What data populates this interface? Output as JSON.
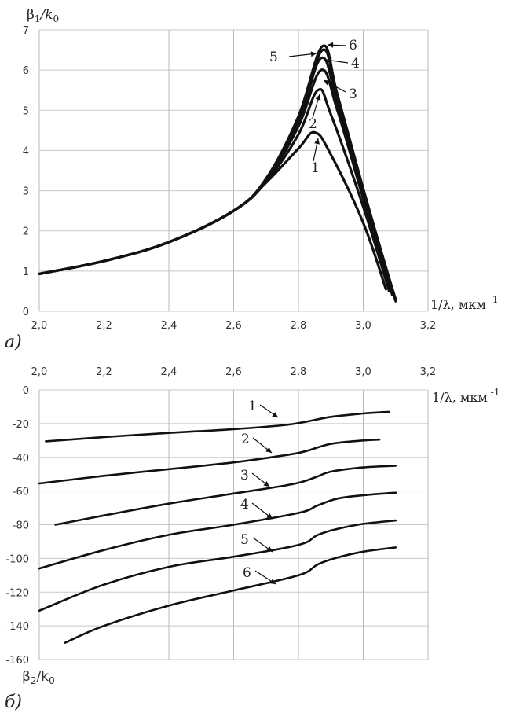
{
  "chart_data": [
    {
      "type": "line",
      "panel_label": "а)",
      "ylabel_main": "β",
      "ylabel_sub": "1",
      "ylabel_rest": "/k",
      "ylabel_sub2": "0",
      "xlabel": "1/λ, мкм",
      "xlabel_exp": "-1",
      "xlim": [
        2.0,
        3.2
      ],
      "ylim": [
        0,
        7
      ],
      "xticks": [
        2.0,
        2.2,
        2.4,
        2.6,
        2.8,
        3.0,
        3.2
      ],
      "xtick_labels": [
        "2,0",
        "2,2",
        "2,4",
        "2,6",
        "2,8",
        "3,0",
        "3,2"
      ],
      "yticks": [
        0,
        1,
        2,
        3,
        4,
        5,
        6,
        7
      ],
      "ytick_labels": [
        "0",
        "1",
        "2",
        "3",
        "4",
        "5",
        "6",
        "7"
      ],
      "series": [
        {
          "name": "1",
          "x": [
            2.0,
            2.2,
            2.4,
            2.6,
            2.7,
            2.8,
            2.85,
            2.9,
            3.0,
            3.07
          ],
          "y": [
            0.93,
            1.25,
            1.72,
            2.5,
            3.2,
            4.05,
            4.45,
            3.9,
            2.2,
            0.55
          ]
        },
        {
          "name": "2",
          "x": [
            2.0,
            2.2,
            2.4,
            2.6,
            2.7,
            2.8,
            2.86,
            2.9,
            3.0,
            3.08
          ],
          "y": [
            0.93,
            1.25,
            1.72,
            2.5,
            3.22,
            4.4,
            5.5,
            4.9,
            2.6,
            0.5
          ]
        },
        {
          "name": "3",
          "x": [
            2.0,
            2.2,
            2.4,
            2.6,
            2.7,
            2.8,
            2.87,
            2.92,
            3.0,
            3.09
          ],
          "y": [
            0.93,
            1.25,
            1.72,
            2.5,
            3.25,
            4.6,
            6.0,
            5.0,
            2.8,
            0.4
          ]
        },
        {
          "name": "4",
          "x": [
            2.0,
            2.2,
            2.4,
            2.6,
            2.7,
            2.8,
            2.87,
            2.92,
            3.0,
            3.1
          ],
          "y": [
            0.93,
            1.25,
            1.72,
            2.5,
            3.27,
            4.7,
            6.3,
            5.2,
            2.9,
            0.3
          ]
        },
        {
          "name": "5",
          "x": [
            2.0,
            2.2,
            2.4,
            2.6,
            2.7,
            2.8,
            2.875,
            2.92,
            3.0,
            3.1
          ],
          "y": [
            0.93,
            1.25,
            1.72,
            2.5,
            3.28,
            4.8,
            6.5,
            5.3,
            3.0,
            0.28
          ]
        },
        {
          "name": "6",
          "x": [
            2.0,
            2.2,
            2.4,
            2.6,
            2.7,
            2.8,
            2.875,
            2.92,
            3.0,
            3.1
          ],
          "y": [
            0.93,
            1.25,
            1.72,
            2.5,
            3.3,
            4.85,
            6.6,
            5.4,
            3.05,
            0.25
          ]
        }
      ],
      "annotations": [
        {
          "text": "1",
          "series": "1"
        },
        {
          "text": "2",
          "series": "2"
        },
        {
          "text": "3",
          "series": "3"
        },
        {
          "text": "4",
          "series": "4"
        },
        {
          "text": "5",
          "series": "5"
        },
        {
          "text": "6",
          "series": "6"
        }
      ]
    },
    {
      "type": "line",
      "panel_label": "б)",
      "ylabel_main": "β",
      "ylabel_sub": "2",
      "ylabel_rest": "/k",
      "ylabel_sub2": "0",
      "xlabel": "1/λ, мкм",
      "xlabel_exp": "-1",
      "xlim": [
        2.0,
        3.2
      ],
      "ylim": [
        -160,
        0
      ],
      "xaxis_position": "top",
      "xticks": [
        2.0,
        2.2,
        2.4,
        2.6,
        2.8,
        3.0,
        3.2
      ],
      "xtick_labels": [
        "2,0",
        "2,2",
        "2,4",
        "2,6",
        "2,8",
        "3,0",
        "3,2"
      ],
      "yticks": [
        0,
        -20,
        -40,
        -60,
        -80,
        -100,
        -120,
        -140,
        -160
      ],
      "ytick_labels": [
        "0",
        "-20",
        "-40",
        "-60",
        "-80",
        "-100",
        "-120",
        "-140",
        "-160"
      ],
      "series": [
        {
          "name": "1",
          "x": [
            2.02,
            2.2,
            2.4,
            2.6,
            2.75,
            2.82,
            2.9,
            3.0,
            3.08
          ],
          "y": [
            -30.5,
            -28,
            -25.5,
            -23.3,
            -21,
            -19,
            -16,
            -14,
            -13
          ]
        },
        {
          "name": "2",
          "x": [
            2.0,
            2.2,
            2.4,
            2.6,
            2.75,
            2.82,
            2.9,
            3.0,
            3.05
          ],
          "y": [
            -55.5,
            -51,
            -47,
            -43,
            -39,
            -36.5,
            -32,
            -30,
            -29.5
          ]
        },
        {
          "name": "3",
          "x": [
            2.05,
            2.2,
            2.4,
            2.6,
            2.78,
            2.85,
            2.9,
            3.0,
            3.1
          ],
          "y": [
            -80,
            -74.5,
            -67.5,
            -61.5,
            -56,
            -52,
            -48.5,
            -46,
            -45
          ]
        },
        {
          "name": "4",
          "x": [
            2.0,
            2.2,
            2.4,
            2.6,
            2.8,
            2.86,
            2.92,
            3.0,
            3.1
          ],
          "y": [
            -106,
            -95,
            -86,
            -80,
            -73,
            -68.5,
            -64.5,
            -62.5,
            -61
          ]
        },
        {
          "name": "5",
          "x": [
            2.0,
            2.2,
            2.4,
            2.6,
            2.8,
            2.86,
            2.92,
            3.0,
            3.1
          ],
          "y": [
            -131,
            -115.5,
            -105,
            -99,
            -92,
            -86,
            -82.5,
            -79.5,
            -77.5
          ]
        },
        {
          "name": "6",
          "x": [
            2.08,
            2.2,
            2.4,
            2.6,
            2.8,
            2.86,
            2.92,
            3.0,
            3.1
          ],
          "y": [
            -150,
            -140,
            -128,
            -119,
            -110,
            -103.5,
            -99.5,
            -96,
            -93.5
          ]
        }
      ],
      "annotations": [
        {
          "text": "1",
          "series": "1"
        },
        {
          "text": "2",
          "series": "2"
        },
        {
          "text": "3",
          "series": "3"
        },
        {
          "text": "4",
          "series": "4"
        },
        {
          "text": "5",
          "series": "5"
        },
        {
          "text": "6",
          "series": "6"
        }
      ]
    }
  ]
}
